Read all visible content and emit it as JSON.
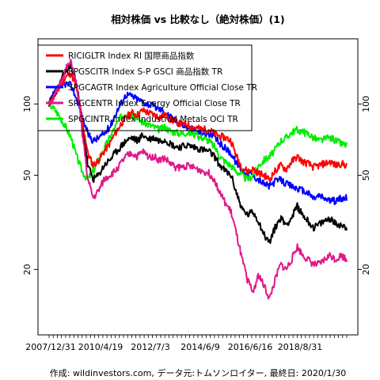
{
  "chart_data": {
    "type": "line",
    "title": "相対株価 vs 比較なし（絶対株価）(1)",
    "footer": "作成: wildinvestors.com, データ元:トムソンロイター, 最終日: 2020/1/30",
    "log_scale_y": true,
    "ylim": [
      11,
      180
    ],
    "y_ticks": [
      20,
      50,
      100
    ],
    "x_tick_labels": [
      "2007/12/31",
      "2010/4/19",
      "2012/7/3",
      "2014/6/9",
      "2016/6/16",
      "2018/8/31"
    ],
    "legend_position": "top-left",
    "series": [
      {
        "name": "RICIGLTR Index RI 国際商品指数",
        "color": "#ff0000",
        "values": [
          100,
          108,
          118,
          130,
          135,
          115,
          85,
          62,
          55,
          58,
          63,
          68,
          75,
          82,
          88,
          92,
          90,
          94,
          92,
          90,
          88,
          90,
          86,
          84,
          82,
          82,
          80,
          79,
          78,
          78,
          75,
          73,
          72,
          70,
          60,
          54,
          52,
          53,
          51,
          50,
          48,
          52,
          55,
          53,
          57,
          60,
          57,
          56,
          54,
          55,
          56,
          57,
          55,
          56,
          55
        ]
      },
      {
        "name": "SPGSCITR Index S-P GSCI 商品指数 TR",
        "color": "#000000",
        "values": [
          100,
          110,
          122,
          138,
          145,
          120,
          82,
          55,
          48,
          50,
          55,
          58,
          62,
          66,
          70,
          72,
          70,
          74,
          71,
          72,
          70,
          71,
          68,
          66,
          66,
          67,
          66,
          65,
          64,
          63,
          60,
          55,
          52,
          50,
          42,
          36,
          34,
          35,
          32,
          28,
          26,
          30,
          33,
          31,
          33,
          37,
          34,
          32,
          30,
          31,
          32,
          33,
          31,
          31,
          30
        ]
      },
      {
        "name": "SPGCAGTR Index Agriculture Official Close TR",
        "color": "#0000ff",
        "values": [
          100,
          112,
          118,
          122,
          120,
          105,
          88,
          75,
          70,
          72,
          75,
          80,
          90,
          100,
          110,
          108,
          105,
          102,
          100,
          98,
          95,
          93,
          88,
          85,
          82,
          80,
          78,
          76,
          75,
          75,
          72,
          68,
          65,
          62,
          56,
          53,
          51,
          50,
          48,
          46,
          45,
          47,
          48,
          46,
          45,
          44,
          43,
          42,
          40,
          41,
          40,
          39,
          39,
          40,
          40
        ]
      },
      {
        "name": "SPGCENTR Index Energy Official Close TR",
        "color": "#e0188a",
        "values": [
          100,
          108,
          122,
          140,
          150,
          120,
          75,
          48,
          40,
          43,
          48,
          50,
          52,
          56,
          60,
          62,
          60,
          63,
          60,
          60,
          58,
          59,
          56,
          54,
          54,
          55,
          54,
          53,
          52,
          51,
          48,
          42,
          38,
          35,
          28,
          22,
          18,
          16,
          19,
          17,
          15,
          18,
          21,
          20,
          22,
          25,
          23,
          22,
          21,
          21,
          22,
          23,
          22,
          23,
          22
        ]
      },
      {
        "name": "SPGCINTR Index Industrial Metals OCI TR",
        "color": "#00ee00",
        "values": [
          100,
          95,
          88,
          80,
          72,
          60,
          52,
          48,
          52,
          58,
          65,
          72,
          80,
          88,
          92,
          90,
          86,
          84,
          82,
          80,
          78,
          80,
          77,
          76,
          75,
          76,
          75,
          73,
          72,
          70,
          66,
          60,
          57,
          55,
          52,
          50,
          48,
          50,
          55,
          58,
          60,
          64,
          70,
          72,
          76,
          78,
          76,
          75,
          72,
          70,
          71,
          72,
          70,
          68,
          67
        ]
      }
    ]
  }
}
